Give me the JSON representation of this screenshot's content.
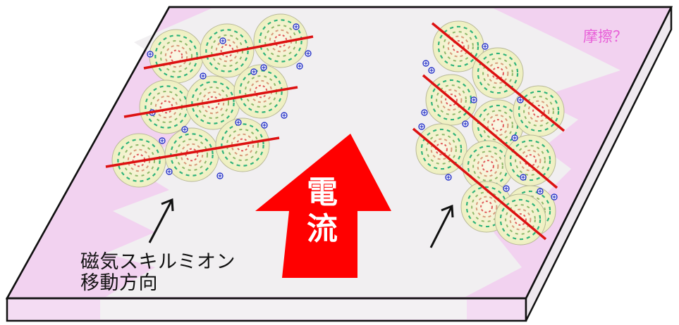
{
  "labels": {
    "motion_line1": "磁気スキルミオン",
    "motion_line2": "移動方向",
    "current_char1": "電",
    "current_char2": "流",
    "friction": "摩擦？"
  },
  "colors": {
    "plate_top": "#f1ecf1",
    "plate_pink": "#f2d2f0",
    "plate_side": "#f4dcf3",
    "outline": "#111111",
    "current_arrow": "#ff0000",
    "stripe": "#dd1111",
    "skyrmion_fill": "#f4f2c8",
    "skyrmion_outer_ring": "#2fb37a",
    "skyrmion_inner_ring": "#e05a5a",
    "charge": "#2a36c8",
    "friction_text": "#e85fd8"
  },
  "icons": {
    "current": "up-arrow-icon",
    "motion": "diagonal-arrow-icon",
    "charge": "plus-circle-icon"
  }
}
